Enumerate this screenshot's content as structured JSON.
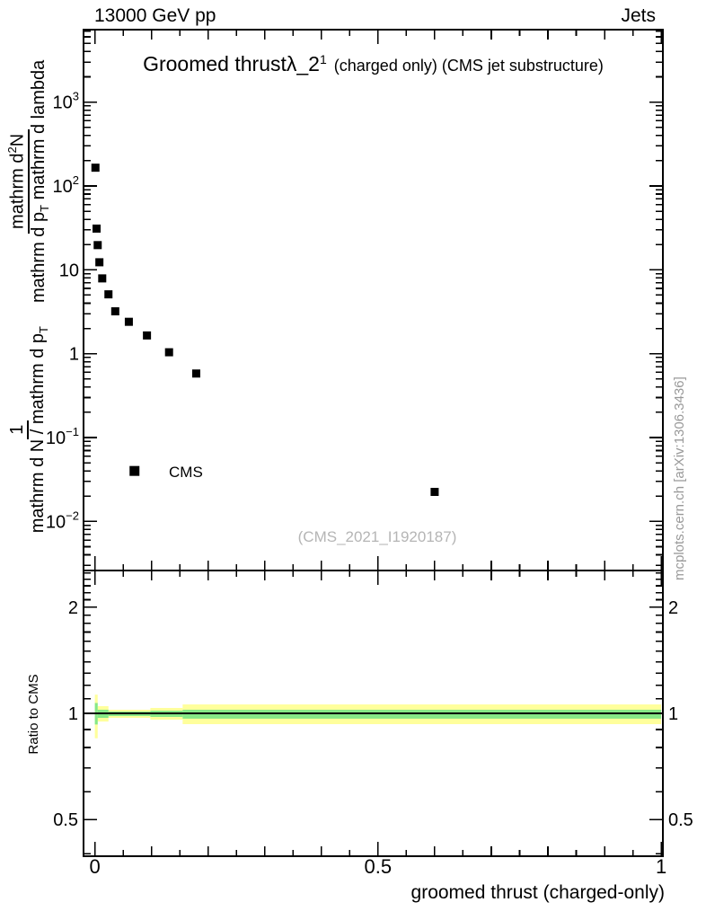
{
  "header": {
    "left": "13000 GeV pp",
    "right": "Jets"
  },
  "title": {
    "main": "Groomed thrust",
    "lambda": "λ_2",
    "sup": "1",
    "suffix": "(charged only) (CMS jet substructure)"
  },
  "watermark": "(CMS_2021_I1920187)",
  "credit": "mcplots.cern.ch [arXiv:1306.3436]",
  "legend": {
    "label": "CMS",
    "marker": "filled-square",
    "marker_x": 0.07,
    "marker_y": 0.04
  },
  "axis_titles": {
    "x": "groomed thrust (charged-only)",
    "ratio_y": "Ratio to CMS",
    "pre_num": "1",
    "pre_den": "mathrm d N / mathrm d p",
    "pre_den_sub": "T",
    "num_a": "mathrm d",
    "num_sup": "2",
    "num_b": "N",
    "den_a": "mathrm d p",
    "den_sub": "T",
    "den_b": " mathrm d lambda"
  },
  "colors": {
    "marker": "#000000",
    "frame": "#000000",
    "band_outer": "#ffff9c",
    "band_inner": "#86e886",
    "ratio_line": "#000000",
    "watermark": "#b5b5b5",
    "credit": "#999999"
  },
  "chart_data": {
    "type": "scatter",
    "title": "Groomed thrust λ_2^1 (charged only) (CMS jet substructure)",
    "beam": "13000 GeV pp",
    "process": "Jets",
    "xlabel": "groomed thrust (charged-only)",
    "grid": false,
    "legend_position": "inside-left",
    "xlim": [
      -0.02,
      1.003
    ],
    "xticks": [
      {
        "v": 0,
        "label": "0"
      },
      {
        "v": 0.5,
        "label": "0.5"
      },
      {
        "v": 1,
        "label": "1"
      }
    ],
    "x_minor_step": 0.05,
    "x_major_step": 0.1,
    "main_panel": {
      "yscale": "log",
      "ylim": [
        0.0026,
        7300
      ],
      "yticks": [
        {
          "v": 1000,
          "label": "10^3"
        },
        {
          "v": 100,
          "label": "10^2"
        },
        {
          "v": 10,
          "label": "10"
        },
        {
          "v": 1,
          "label": "1"
        },
        {
          "v": 0.1,
          "label": "10^-1"
        },
        {
          "v": 0.01,
          "label": "10^-2"
        }
      ],
      "series": [
        {
          "name": "CMS",
          "marker": "filled-square",
          "marker_size": 9,
          "points": [
            [
              0.001,
              165
            ],
            [
              0.003,
              31
            ],
            [
              0.005,
              19.7
            ],
            [
              0.008,
              12.3
            ],
            [
              0.013,
              7.9
            ],
            [
              0.024,
              5.1
            ],
            [
              0.036,
              3.2
            ],
            [
              0.06,
              2.4
            ],
            [
              0.092,
              1.65
            ],
            [
              0.131,
              1.04
            ],
            [
              0.179,
              0.58
            ],
            [
              0.6,
              0.0225
            ]
          ]
        }
      ]
    },
    "ratio_panel": {
      "ylabel": "Ratio to CMS",
      "yscale": "log",
      "ylim": [
        0.3935,
        2.5414
      ],
      "yticks": [
        {
          "v": 2,
          "label": "2"
        },
        {
          "v": 1,
          "label": "1"
        },
        {
          "v": 0.5,
          "label": "0.5"
        }
      ],
      "y_minor_ticks": [
        0.4,
        0.6,
        0.7,
        0.8,
        0.9,
        1.1,
        1.2,
        1.3,
        1.4,
        1.5,
        1.6,
        1.7,
        1.8,
        1.9,
        2.1,
        2.2,
        2.3,
        2.4,
        2.5
      ],
      "line": {
        "y": 1.0
      },
      "bands": [
        {
          "x0": 0.0,
          "x1": 0.005,
          "outer": [
            0.85,
            1.13
          ],
          "inner": [
            0.93,
            1.07
          ]
        },
        {
          "x0": 0.005,
          "x1": 0.024,
          "outer": [
            0.948,
            1.048
          ],
          "inner": [
            0.971,
            1.024
          ]
        },
        {
          "x0": 0.024,
          "x1": 0.098,
          "outer": [
            0.971,
            1.024
          ],
          "inner": [
            0.983,
            1.012
          ]
        },
        {
          "x0": 0.098,
          "x1": 0.155,
          "outer": [
            0.96,
            1.036
          ],
          "inner": [
            0.977,
            1.018
          ]
        },
        {
          "x0": 0.155,
          "x1": 1.0,
          "outer": [
            0.932,
            1.06
          ],
          "inner": [
            0.966,
            1.024
          ]
        }
      ]
    }
  }
}
